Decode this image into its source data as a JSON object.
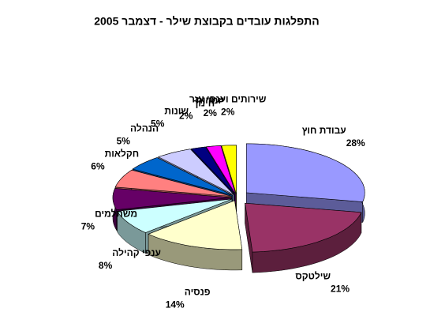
{
  "chart_data": {
    "type": "pie",
    "title": "התפלגות עובדים בקבוצת שילר - דצמבר 2005",
    "categories": [
      "עבודת חוץ",
      "שילטקס",
      "פנסיה",
      "ענפי קהילה",
      "משתלמים",
      "חקלאות",
      "הנהלה",
      "שונות",
      "חינוך",
      "יזמויות",
      "שירותים וענפי עזר"
    ],
    "values": [
      28,
      21,
      14,
      8,
      7,
      6,
      5,
      5,
      2,
      2,
      2
    ],
    "value_labels": [
      "28%",
      "21%",
      "14%",
      "8%",
      "7%",
      "6%",
      "5%",
      "5%",
      "2%",
      "2%",
      "2%"
    ],
    "colors": [
      "#9999ff",
      "#993366",
      "#ffffcc",
      "#ccffff",
      "#660066",
      "#ff8080",
      "#0066cc",
      "#ccccff",
      "#000080",
      "#ff00ff",
      "#ffff00"
    ]
  }
}
